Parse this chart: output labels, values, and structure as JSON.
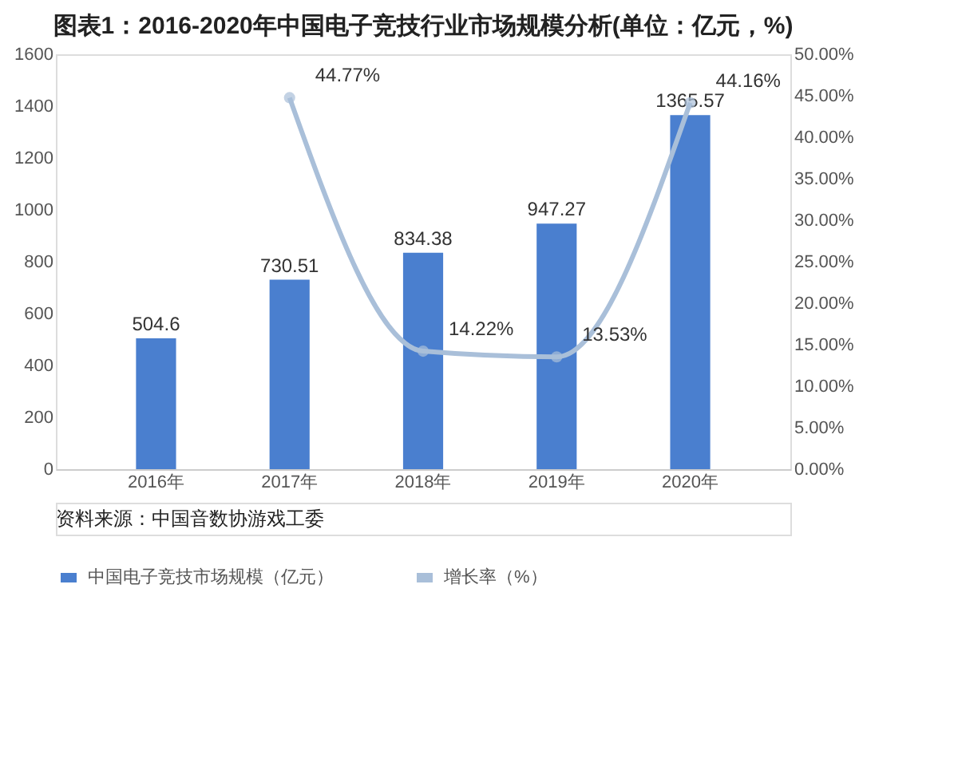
{
  "chart_data": {
    "type": "bar",
    "title": "图表1：2016-2020年中国电子竞技行业市场规模分析(单位：亿元，%)",
    "categories": [
      "2016年",
      "2017年",
      "2018年",
      "2019年",
      "2020年"
    ],
    "series": [
      {
        "name": "中国电子竞技市场规模（亿元）",
        "color": "#4a7fcf",
        "values": [
          504.6,
          730.51,
          834.38,
          947.27,
          1365.57
        ]
      },
      {
        "name": "增长率（%）",
        "type": "line",
        "axis": "y2",
        "color": "#a9bfd9",
        "marker": "circle",
        "values": [
          null,
          44.77,
          14.22,
          13.53,
          44.16
        ],
        "value_labels": [
          null,
          "44.77%",
          "14.22%",
          "13.53%",
          "44.16%"
        ]
      }
    ],
    "data_labels": true,
    "ylim": [
      0,
      1600
    ],
    "yticks": [
      0,
      200,
      400,
      600,
      800,
      1000,
      1200,
      1400,
      1600
    ],
    "y2lim": [
      0,
      50
    ],
    "y2ticks": [
      {
        "value": 0,
        "label": "0.00%"
      },
      {
        "value": 5,
        "label": "5.00%"
      },
      {
        "value": 10,
        "label": "10.00%"
      },
      {
        "value": 15,
        "label": "15.00%"
      },
      {
        "value": 20,
        "label": "20.00%"
      },
      {
        "value": 25,
        "label": "25.00%"
      },
      {
        "value": 30,
        "label": "30.00%"
      },
      {
        "value": 35,
        "label": "35.00%"
      },
      {
        "value": 40,
        "label": "40.00%"
      },
      {
        "value": 45,
        "label": "45.00%"
      },
      {
        "value": 50,
        "label": "50.00%"
      }
    ],
    "grid": false,
    "legend": "bottom",
    "annotations": [
      "资料来源：中国音数协游戏工委"
    ]
  }
}
